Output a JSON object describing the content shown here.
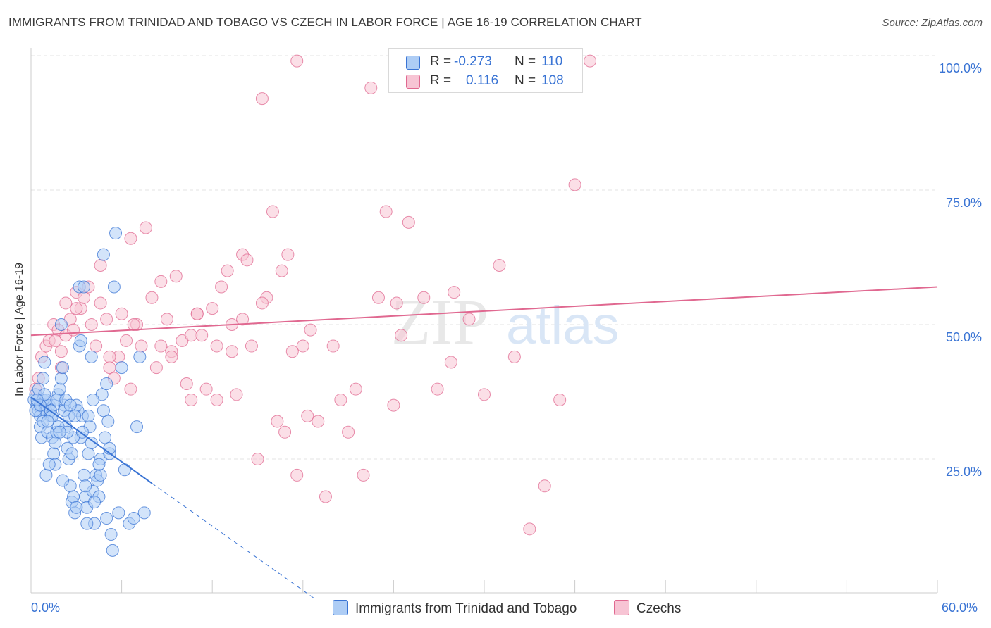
{
  "title": "IMMIGRANTS FROM TRINIDAD AND TOBAGO VS CZECH IN LABOR FORCE | AGE 16-19 CORRELATION CHART",
  "source": "Source: ZipAtlas.com",
  "watermark": {
    "zip": "ZIP",
    "atlas": "atlas"
  },
  "colors": {
    "blue": "#3a74d4",
    "blue_fill": "#aecdf5",
    "pink": "#e06890",
    "pink_fill": "#f7c4d4",
    "grid": "#e3e3e3",
    "axis_text": "#3a74d4"
  },
  "legend": {
    "rows": [
      {
        "r_label": "R =",
        "r_value": "-0.273",
        "n_label": "N =",
        "n_value": "110"
      },
      {
        "r_label": "R =",
        "r_value": "0.116",
        "n_label": "N =",
        "n_value": "108"
      }
    ]
  },
  "bottom_legend": [
    "Immigrants from Trinidad and Tobago",
    "Czechs"
  ],
  "chart_data": {
    "type": "scatter",
    "title": "IMMIGRANTS FROM TRINIDAD AND TOBAGO VS CZECH IN LABOR FORCE | AGE 16-19 CORRELATION CHART",
    "xlabel": "",
    "ylabel": "In Labor Force | Age 16-19",
    "xlim": [
      0,
      60
    ],
    "ylim": [
      0,
      105
    ],
    "x_tick_labels": [
      "0.0%",
      "60.0%"
    ],
    "y_ticks": [
      25,
      50,
      75,
      100
    ],
    "y_tick_labels": [
      "25.0%",
      "50.0%",
      "75.0%",
      "100.0%"
    ],
    "grid": true,
    "legend_placement": "top-center",
    "series": [
      {
        "name": "Immigrants from Trinidad and Tobago",
        "color": "#3a74d4",
        "points": [
          [
            0.2,
            36
          ],
          [
            0.3,
            37
          ],
          [
            0.4,
            35
          ],
          [
            0.5,
            34
          ],
          [
            0.6,
            33
          ],
          [
            0.7,
            35
          ],
          [
            0.8,
            36
          ],
          [
            0.9,
            35
          ],
          [
            1.0,
            34
          ],
          [
            0.5,
            38
          ],
          [
            0.6,
            31
          ],
          [
            0.7,
            29
          ],
          [
            0.8,
            40
          ],
          [
            0.9,
            43
          ],
          [
            1.0,
            22
          ],
          [
            1.1,
            30
          ],
          [
            1.2,
            35
          ],
          [
            1.3,
            33
          ],
          [
            1.4,
            29
          ],
          [
            1.5,
            26
          ],
          [
            1.6,
            24
          ],
          [
            1.7,
            30
          ],
          [
            1.8,
            37
          ],
          [
            1.9,
            38
          ],
          [
            2.0,
            40
          ],
          [
            2.1,
            42
          ],
          [
            2.2,
            35
          ],
          [
            2.3,
            31
          ],
          [
            2.4,
            27
          ],
          [
            2.5,
            25
          ],
          [
            2.6,
            20
          ],
          [
            2.7,
            17
          ],
          [
            2.8,
            18
          ],
          [
            2.9,
            15
          ],
          [
            3.0,
            35
          ],
          [
            3.1,
            34
          ],
          [
            3.2,
            46
          ],
          [
            3.3,
            29
          ],
          [
            3.4,
            33
          ],
          [
            3.5,
            22
          ],
          [
            3.6,
            18
          ],
          [
            3.7,
            16
          ],
          [
            3.8,
            26
          ],
          [
            3.9,
            31
          ],
          [
            4.0,
            28
          ],
          [
            4.1,
            19
          ],
          [
            4.2,
            13
          ],
          [
            4.3,
            22
          ],
          [
            4.4,
            21
          ],
          [
            4.5,
            18
          ],
          [
            4.6,
            25
          ],
          [
            4.7,
            37
          ],
          [
            4.8,
            34
          ],
          [
            4.9,
            29
          ],
          [
            5.0,
            39
          ],
          [
            5.1,
            32
          ],
          [
            5.2,
            26
          ],
          [
            5.3,
            11
          ],
          [
            5.4,
            8
          ],
          [
            5.5,
            57
          ],
          [
            5.6,
            67
          ],
          [
            5.8,
            15
          ],
          [
            6.0,
            42
          ],
          [
            6.2,
            23
          ],
          [
            6.5,
            13
          ],
          [
            7.0,
            31
          ],
          [
            7.2,
            44
          ],
          [
            7.5,
            15
          ],
          [
            2.0,
            50
          ],
          [
            3.2,
            57
          ],
          [
            3.5,
            57
          ],
          [
            4.0,
            44
          ],
          [
            4.8,
            63
          ],
          [
            3.3,
            47
          ],
          [
            1.5,
            35
          ],
          [
            2.2,
            34
          ],
          [
            2.5,
            33
          ],
          [
            1.0,
            36
          ],
          [
            1.3,
            34
          ],
          [
            2.8,
            29
          ],
          [
            1.8,
            31
          ],
          [
            2.1,
            21
          ],
          [
            3.0,
            16
          ],
          [
            3.7,
            13
          ],
          [
            4.6,
            22
          ],
          [
            1.2,
            24
          ],
          [
            0.8,
            32
          ],
          [
            1.6,
            28
          ],
          [
            2.4,
            30
          ],
          [
            3.8,
            33
          ],
          [
            4.2,
            17
          ],
          [
            5.0,
            14
          ],
          [
            6.8,
            14
          ],
          [
            0.3,
            34
          ],
          [
            0.6,
            35
          ],
          [
            0.9,
            37
          ],
          [
            1.4,
            33
          ],
          [
            1.7,
            36
          ],
          [
            2.3,
            36
          ],
          [
            2.6,
            35
          ],
          [
            2.9,
            33
          ],
          [
            3.4,
            30
          ],
          [
            4.1,
            36
          ],
          [
            4.5,
            24
          ],
          [
            5.2,
            27
          ],
          [
            0.4,
            36
          ],
          [
            1.1,
            32
          ],
          [
            1.9,
            30
          ],
          [
            2.7,
            26
          ],
          [
            3.6,
            20
          ]
        ],
        "trend": {
          "x0": 0,
          "y0": 36.5,
          "x1": 8,
          "y1": 20.5,
          "dash_to_x": 18.8,
          "dash_to_y": -1
        }
      },
      {
        "name": "Czechs",
        "color": "#e06890",
        "points": [
          [
            0.3,
            38
          ],
          [
            0.5,
            40
          ],
          [
            0.7,
            44
          ],
          [
            1.0,
            46
          ],
          [
            1.2,
            47
          ],
          [
            1.5,
            50
          ],
          [
            1.8,
            49
          ],
          [
            2.0,
            45
          ],
          [
            2.3,
            48
          ],
          [
            2.6,
            51
          ],
          [
            2.8,
            49
          ],
          [
            3.0,
            56
          ],
          [
            3.3,
            53
          ],
          [
            3.5,
            55
          ],
          [
            3.8,
            57
          ],
          [
            4.0,
            50
          ],
          [
            4.3,
            46
          ],
          [
            4.6,
            54
          ],
          [
            5.0,
            51
          ],
          [
            5.2,
            42
          ],
          [
            5.5,
            40
          ],
          [
            5.8,
            44
          ],
          [
            6.0,
            52
          ],
          [
            6.3,
            47
          ],
          [
            6.6,
            38
          ],
          [
            7.0,
            50
          ],
          [
            7.3,
            46
          ],
          [
            7.6,
            68
          ],
          [
            8.0,
            55
          ],
          [
            8.3,
            42
          ],
          [
            8.6,
            58
          ],
          [
            9.0,
            51
          ],
          [
            9.3,
            45
          ],
          [
            9.6,
            59
          ],
          [
            10.0,
            47
          ],
          [
            10.3,
            39
          ],
          [
            10.6,
            36
          ],
          [
            11.0,
            52
          ],
          [
            11.3,
            48
          ],
          [
            11.6,
            38
          ],
          [
            12.0,
            53
          ],
          [
            12.3,
            46
          ],
          [
            12.6,
            57
          ],
          [
            13.0,
            60
          ],
          [
            13.3,
            50
          ],
          [
            13.6,
            37
          ],
          [
            14.0,
            63
          ],
          [
            14.3,
            62
          ],
          [
            14.6,
            46
          ],
          [
            15.0,
            25
          ],
          [
            15.3,
            92
          ],
          [
            15.6,
            55
          ],
          [
            16.0,
            71
          ],
          [
            16.3,
            32
          ],
          [
            16.6,
            60
          ],
          [
            17.0,
            63
          ],
          [
            17.3,
            45
          ],
          [
            17.6,
            99
          ],
          [
            18.0,
            46
          ],
          [
            18.3,
            33
          ],
          [
            19.0,
            32
          ],
          [
            19.5,
            18
          ],
          [
            20.0,
            46
          ],
          [
            20.5,
            36
          ],
          [
            21.0,
            30
          ],
          [
            21.5,
            38
          ],
          [
            22.0,
            22
          ],
          [
            22.5,
            94
          ],
          [
            23.0,
            55
          ],
          [
            23.5,
            71
          ],
          [
            24.0,
            35
          ],
          [
            24.5,
            48
          ],
          [
            25.0,
            69
          ],
          [
            25.5,
            99
          ],
          [
            26.0,
            55
          ],
          [
            27.0,
            99
          ],
          [
            28.0,
            56
          ],
          [
            29.0,
            51
          ],
          [
            30.0,
            37
          ],
          [
            31.0,
            61
          ],
          [
            32.0,
            44
          ],
          [
            33.0,
            12
          ],
          [
            34.0,
            20
          ],
          [
            35.0,
            36
          ],
          [
            36.0,
            76
          ],
          [
            37.0,
            99
          ],
          [
            14.0,
            51
          ],
          [
            15.3,
            54
          ],
          [
            16.8,
            30
          ],
          [
            17.6,
            22
          ],
          [
            18.5,
            49
          ],
          [
            6.8,
            50
          ],
          [
            8.6,
            46
          ],
          [
            11.0,
            52
          ],
          [
            12.3,
            36
          ],
          [
            9.3,
            44
          ],
          [
            3.0,
            53
          ],
          [
            4.6,
            61
          ],
          [
            6.6,
            66
          ],
          [
            2.0,
            42
          ],
          [
            1.6,
            47
          ],
          [
            2.3,
            54
          ],
          [
            5.2,
            44
          ],
          [
            10.6,
            48
          ],
          [
            13.3,
            45
          ],
          [
            24.2,
            54
          ],
          [
            26.9,
            38
          ],
          [
            27.8,
            43
          ]
        ],
        "trend": {
          "x0": 0,
          "y0": 48,
          "x1": 60,
          "y1": 57
        }
      }
    ]
  }
}
